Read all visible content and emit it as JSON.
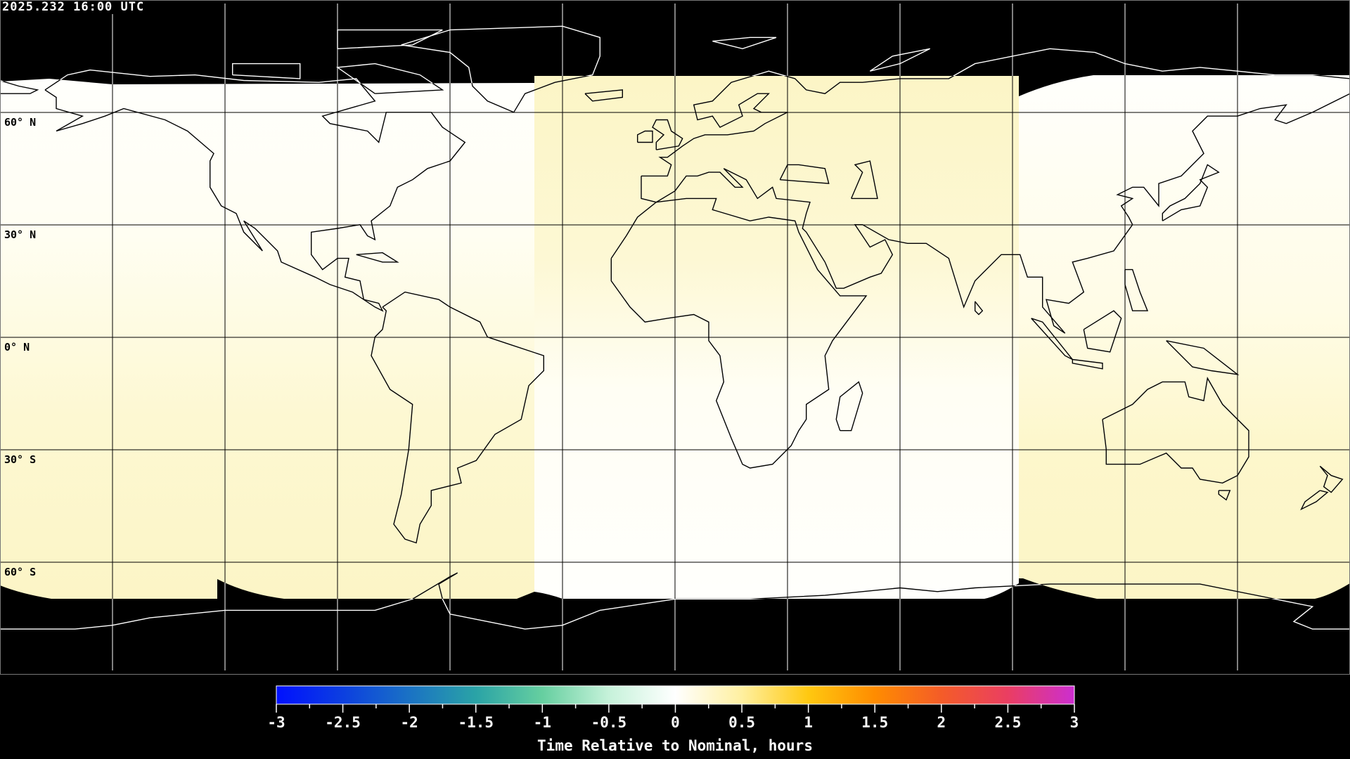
{
  "header": {
    "timestamp": "2025.232 16:00 UTC"
  },
  "map": {
    "projection": "equirectangular",
    "graticule_spacing_deg": 30,
    "lat_labels": [
      "60° N",
      "30° N",
      "0° N",
      "30° S",
      "60° S"
    ],
    "colors": {
      "background": "#000000",
      "coverage_low": "#fffffa",
      "coverage_high": "#fdf6c8",
      "coastline_on_data": "#000000",
      "coastline_on_background": "#ffffff"
    }
  },
  "colorbar": {
    "min": -3,
    "max": 3,
    "tick_labels": [
      "-3",
      "-2.5",
      "-2",
      "-1.5",
      "-1",
      "-0.5",
      "0",
      "0.5",
      "1",
      "1.5",
      "2",
      "2.5",
      "3"
    ],
    "label": "Time Relative to Nominal, hours",
    "colors": [
      "#0010ff",
      "#0c3fe0",
      "#1a72c4",
      "#2aa3a6",
      "#66cfa0",
      "#c6f2da",
      "#ffffff",
      "#fff0a0",
      "#ffc810",
      "#ff8c00",
      "#f45c28",
      "#ea3e62",
      "#cc2ed0"
    ]
  }
}
